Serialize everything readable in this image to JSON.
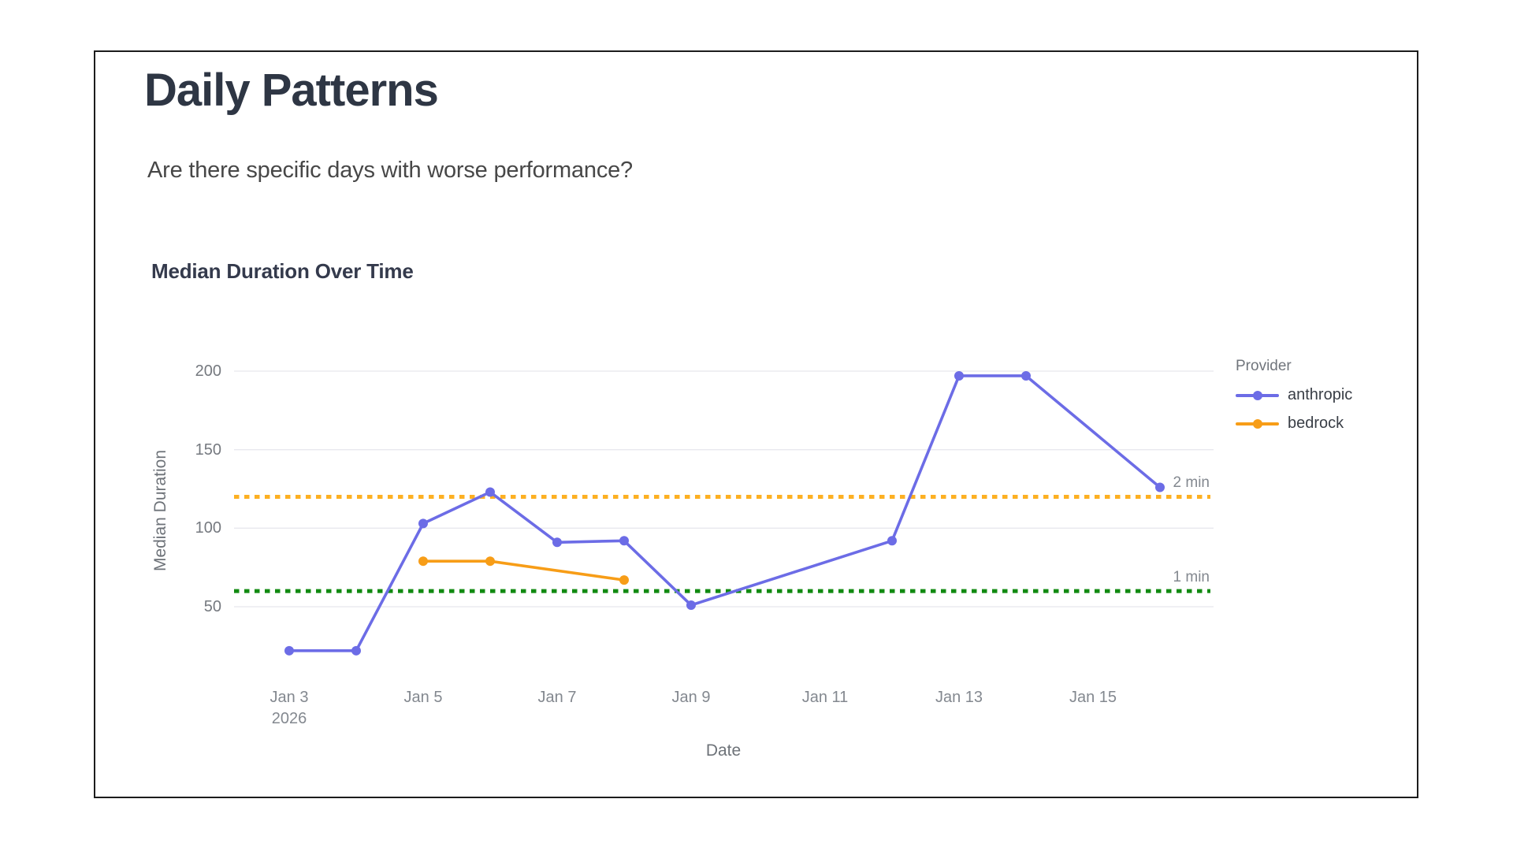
{
  "header": {
    "title": "Daily Patterns",
    "subtitle": "Are there specific days with worse performance?"
  },
  "chart_data": {
    "type": "line",
    "title": "Median Duration Over Time",
    "xlabel": "Date",
    "ylabel": "Median Duration",
    "x_tick_labels": [
      "Jan 3",
      "Jan 5",
      "Jan 7",
      "Jan 9",
      "Jan 11",
      "Jan 13",
      "Jan 15"
    ],
    "x_tick_year": "2026",
    "y_ticks": [
      50,
      100,
      150,
      200
    ],
    "ylim": [
      0,
      220
    ],
    "grid": "horizontal-only",
    "legend": {
      "title": "Provider",
      "position": "right"
    },
    "series": [
      {
        "name": "anthropic",
        "color": "#6c6ce6",
        "points": [
          {
            "date": "Jan 3",
            "day": 3,
            "value": 22
          },
          {
            "date": "Jan 4",
            "day": 4,
            "value": 22
          },
          {
            "date": "Jan 5",
            "day": 5,
            "value": 103
          },
          {
            "date": "Jan 6",
            "day": 6,
            "value": 123
          },
          {
            "date": "Jan 7",
            "day": 7,
            "value": 91
          },
          {
            "date": "Jan 8",
            "day": 8,
            "value": 92
          },
          {
            "date": "Jan 9",
            "day": 9,
            "value": 51
          },
          {
            "date": "Jan 12",
            "day": 12,
            "value": 92
          },
          {
            "date": "Jan 13",
            "day": 13,
            "value": 197
          },
          {
            "date": "Jan 14",
            "day": 14,
            "value": 197
          },
          {
            "date": "Jan 16",
            "day": 16,
            "value": 126
          }
        ]
      },
      {
        "name": "bedrock",
        "color": "#f79d17",
        "points": [
          {
            "date": "Jan 5",
            "day": 5,
            "value": 79
          },
          {
            "date": "Jan 6",
            "day": 6,
            "value": 79
          },
          {
            "date": "Jan 8",
            "day": 8,
            "value": 67
          }
        ]
      }
    ],
    "reference_lines": [
      {
        "label": "2 min",
        "value": 120,
        "color": "#fdb022",
        "style": "dotted"
      },
      {
        "label": "1 min",
        "value": 60,
        "color": "#118a11",
        "style": "dotted"
      }
    ]
  }
}
